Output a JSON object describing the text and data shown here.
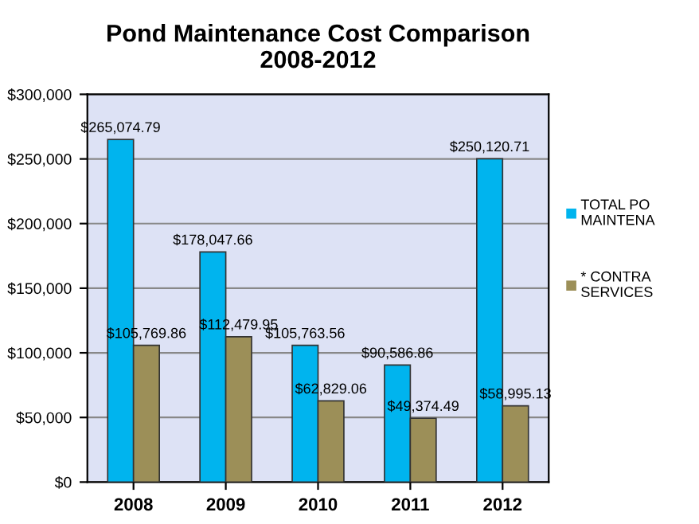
{
  "chart_data": {
    "type": "bar",
    "title": "Pond Maintenance Cost Comparison\n2008-2012",
    "categories": [
      "2008",
      "2009",
      "2010",
      "2011",
      "2012"
    ],
    "series": [
      {
        "name": "TOTAL PO\nMAINTENA",
        "color": "#00b4ee",
        "values": [
          265074.79,
          178047.66,
          105763.56,
          90586.86,
          250120.71
        ],
        "value_labels": [
          "$265,074.79",
          "$178,047.66",
          "$105,763.56",
          "$90,586.86",
          "$250,120.71"
        ]
      },
      {
        "name": "* CONTRA\nSERVICES",
        "color": "#9c8f58",
        "values": [
          105769.86,
          112479.95,
          62829.06,
          49374.49,
          58995.13
        ],
        "value_labels": [
          "$105,769.86",
          "$112,479.95",
          "$62,829.06",
          "$49,374.49",
          "$58,995.13"
        ]
      }
    ],
    "ylim": [
      0,
      300000
    ],
    "yticks": [
      {
        "value": 0,
        "label": "$0"
      },
      {
        "value": 50000,
        "label": "$50,000"
      },
      {
        "value": 100000,
        "label": "$100,000"
      },
      {
        "value": 150000,
        "label": "$150,000"
      },
      {
        "value": 200000,
        "label": "$200,000"
      },
      {
        "value": 250000,
        "label": "$250,000"
      },
      {
        "value": 300000,
        "label": "$300,000"
      }
    ],
    "grid": "y",
    "legend": "right"
  }
}
